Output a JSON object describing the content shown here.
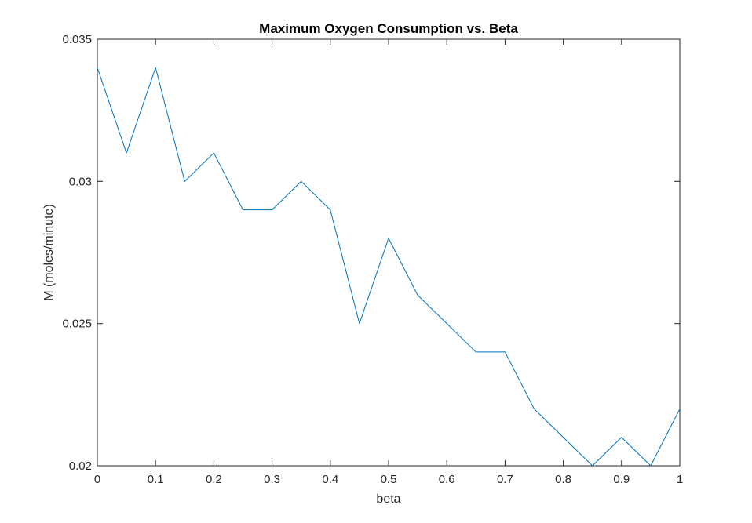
{
  "chart_data": {
    "type": "line",
    "title": "Maximum Oxygen Consumption vs. Beta",
    "xlabel": "beta",
    "ylabel": "M (moles/minute)",
    "xlim": [
      0,
      1
    ],
    "ylim": [
      0.02,
      0.035
    ],
    "grid": false,
    "xticks": [
      0,
      0.1,
      0.2,
      0.3,
      0.4,
      0.5,
      0.6,
      0.7,
      0.8,
      0.9,
      1
    ],
    "xtick_labels": [
      "0",
      "0.1",
      "0.2",
      "0.3",
      "0.4",
      "0.5",
      "0.6",
      "0.7",
      "0.8",
      "0.9",
      "1"
    ],
    "yticks": [
      0.02,
      0.025,
      0.03,
      0.035
    ],
    "ytick_labels": [
      "0.02",
      "0.025",
      "0.03",
      "0.035"
    ],
    "series": [
      {
        "color": "#0072BD",
        "x": [
          0,
          0.05,
          0.1,
          0.15,
          0.2,
          0.25,
          0.3,
          0.35,
          0.4,
          0.45,
          0.5,
          0.55,
          0.6,
          0.65,
          0.7,
          0.75,
          0.8,
          0.85,
          0.9,
          0.95,
          1
        ],
        "y": [
          0.034,
          0.031,
          0.034,
          0.03,
          0.031,
          0.029,
          0.029,
          0.03,
          0.029,
          0.025,
          0.028,
          0.026,
          0.025,
          0.024,
          0.024,
          0.022,
          0.021,
          0.02,
          0.021,
          0.02,
          0.022
        ]
      }
    ]
  }
}
